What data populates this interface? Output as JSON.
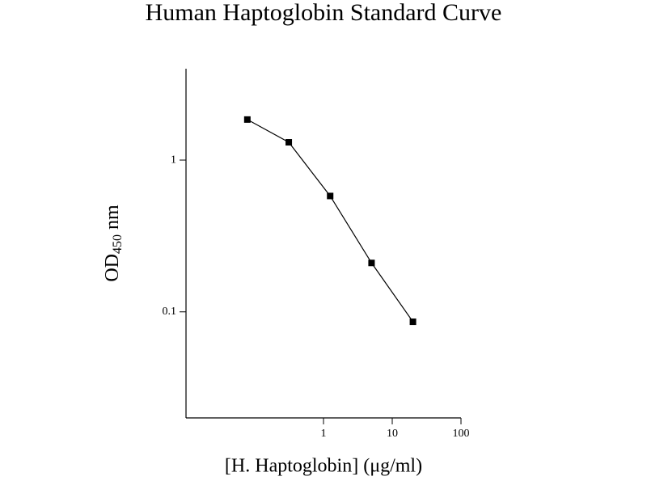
{
  "chart_data": {
    "type": "line",
    "title": "Human Haptoglobin Standard Curve",
    "xlabel": "[H. Haptoglobin] (μg/ml)",
    "ylabel": [
      "OD",
      "450",
      "nm"
    ],
    "xscale": "log",
    "yscale": "log",
    "xlim": [
      0.01,
      100
    ],
    "ylim": [
      0.02,
      4
    ],
    "xticks": [
      1,
      10,
      100
    ],
    "yticks": [
      0.1,
      1
    ],
    "color": "#000000",
    "x": [
      0.078,
      0.3125,
      1.25,
      5,
      20
    ],
    "values": [
      1.85,
      1.31,
      0.58,
      0.21,
      0.086
    ]
  }
}
